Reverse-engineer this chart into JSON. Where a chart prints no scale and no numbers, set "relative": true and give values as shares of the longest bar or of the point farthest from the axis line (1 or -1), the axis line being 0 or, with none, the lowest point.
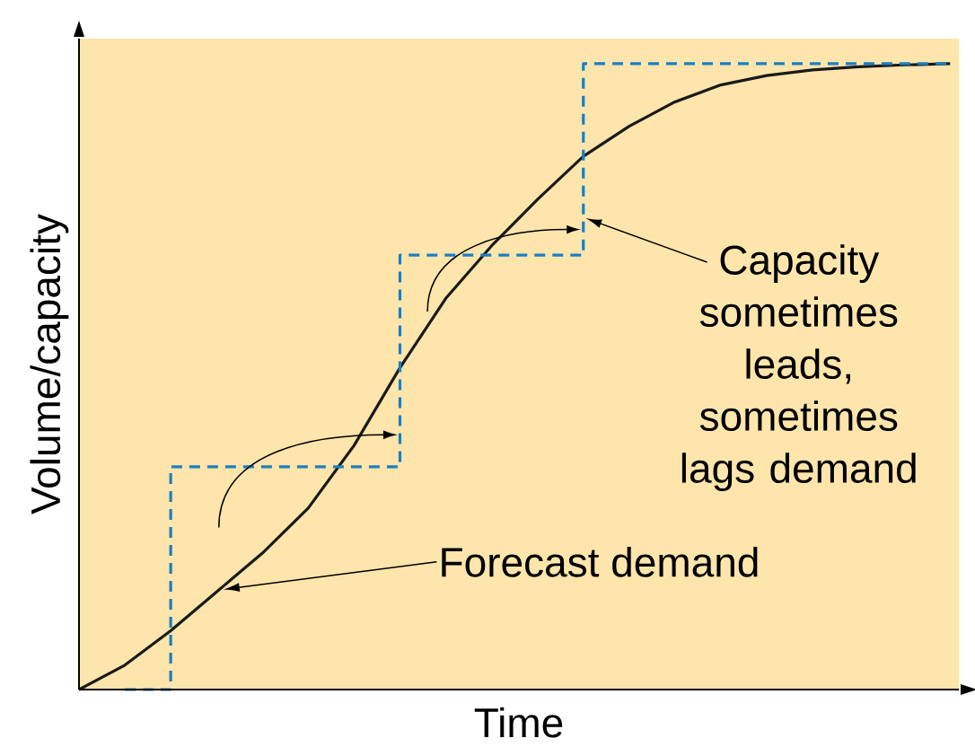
{
  "chart_data": {
    "type": "line",
    "relative": true,
    "xlabel": "Time",
    "ylabel": "Volume/capacity",
    "marker": "none",
    "categories": [
      null,
      null,
      null,
      null,
      null,
      null,
      null,
      null,
      null,
      null,
      null,
      null,
      null,
      null,
      null,
      null,
      null,
      null,
      null,
      null
    ],
    "series": [
      {
        "color": "#1a1a1a",
        "line_style": "solid",
        "values": [
          0,
          0.039,
          0.094,
          0.156,
          0.218,
          0.29,
          0.39,
          0.514,
          0.625,
          0.709,
          0.783,
          0.852,
          0.9,
          0.939,
          0.966,
          0.981,
          0.99,
          0.995,
          0.998,
          1.0
        ]
      },
      {
        "type": "step",
        "color": "#1a7fc1",
        "line_style": "dashed",
        "values": [
          null,
          0,
          0.356,
          0.356,
          0.356,
          0.356,
          0.356,
          0.694,
          0.694,
          0.694,
          0.694,
          1.0,
          1.0,
          1.0,
          1.0,
          1.0,
          1.0,
          1.0,
          1.0,
          1.0
        ]
      }
    ],
    "annotations": [
      "Forecast demand",
      "Capacity sometimes leads, sometimes lags demand"
    ]
  }
}
